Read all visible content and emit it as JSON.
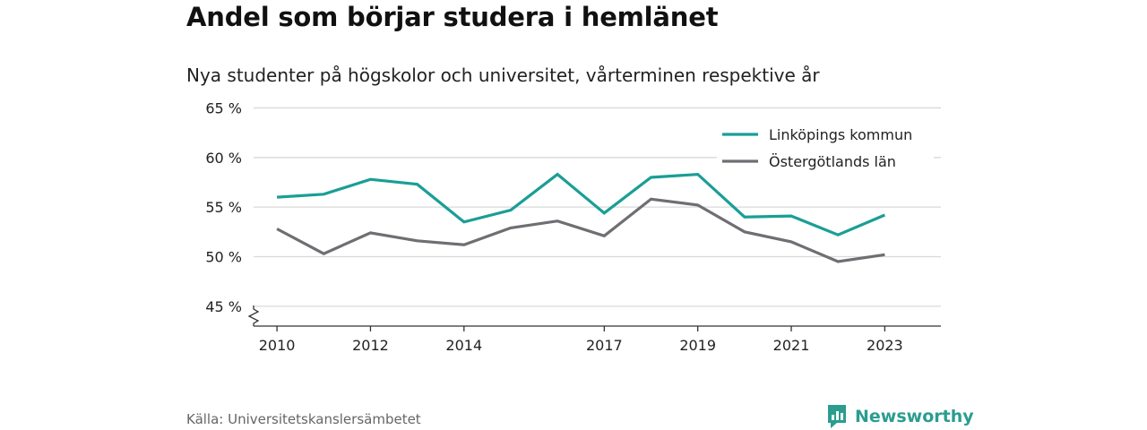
{
  "title": "Andel som börjar studera i hemlänet",
  "subtitle": "Nya studenter på högskolor och universitet, vårterminen respektive år",
  "source": "Källa: Universitetskanslersämbetet",
  "brand": {
    "name": "Newsworthy",
    "icon": "newsworthy-chart-bubble-icon",
    "color": "#2a9d8f"
  },
  "chart_data": {
    "type": "line",
    "x": [
      2010,
      2011,
      2012,
      2013,
      2014,
      2015,
      2016,
      2017,
      2018,
      2019,
      2020,
      2021,
      2022,
      2023
    ],
    "x_tick_labels": [
      "2010",
      "2012",
      "2014",
      "2017",
      "2019",
      "2021",
      "2023"
    ],
    "x_tick_values": [
      2010,
      2012,
      2014,
      2017,
      2019,
      2021,
      2023
    ],
    "y_ticks": [
      45,
      50,
      55,
      60,
      65
    ],
    "y_tick_labels": [
      "45 %",
      "50 %",
      "55 %",
      "60 %",
      "65 %"
    ],
    "ylim": [
      43,
      65
    ],
    "y_axis_break": true,
    "grid": true,
    "legend_position": "top-right",
    "series": [
      {
        "name": "Linköpings kommun",
        "color": "#1a9e96",
        "values": [
          56.0,
          56.3,
          57.8,
          57.3,
          53.5,
          54.7,
          58.3,
          54.4,
          58.0,
          58.3,
          54.0,
          54.1,
          52.2,
          54.2
        ]
      },
      {
        "name": "Östergötlands län",
        "color": "#6e6e73",
        "values": [
          52.8,
          50.3,
          52.4,
          51.6,
          51.2,
          52.9,
          53.6,
          52.1,
          55.8,
          55.2,
          52.5,
          51.5,
          49.5,
          50.2
        ]
      }
    ]
  }
}
